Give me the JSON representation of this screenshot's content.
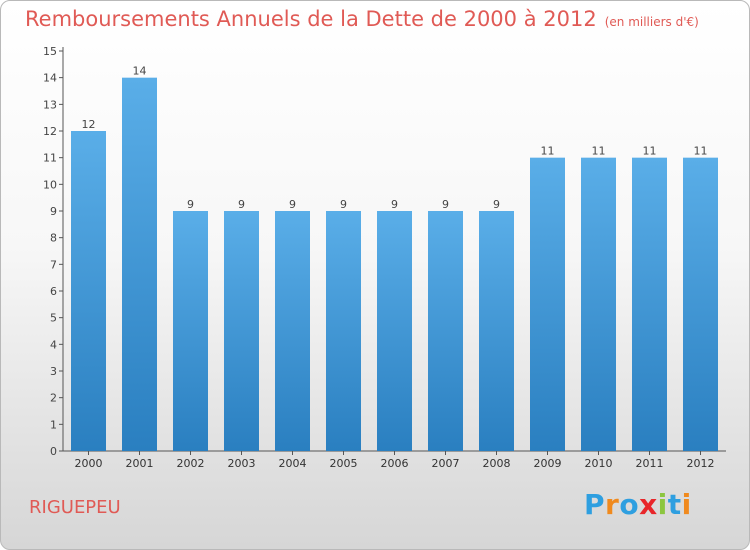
{
  "header": {
    "title": "Remboursements Annuels de la Dette de 2000 à 2012",
    "unit": "(en milliers d'€)"
  },
  "commune": "RIGUEPEU",
  "logo": {
    "text": "Proxiti",
    "letters": [
      {
        "char": "P",
        "color": "#2e9fe0"
      },
      {
        "char": "r",
        "color": "#f08a1e"
      },
      {
        "char": "o",
        "color": "#2e9fe0"
      },
      {
        "char": "x",
        "color": "#e8262a"
      },
      {
        "char": "i",
        "color": "#8cc63f"
      },
      {
        "char": "t",
        "color": "#2e9fe0"
      },
      {
        "char": "i",
        "color": "#f08a1e"
      }
    ]
  },
  "colors": {
    "title": "#e05a55",
    "bar_light": "#5aaee8",
    "bar_dark": "#2a7fc0"
  },
  "chart_data": {
    "type": "bar",
    "title": "Remboursements Annuels de la Dette de 2000 à 2012",
    "subtitle": "(en milliers d'€)",
    "xlabel": "",
    "ylabel": "",
    "categories": [
      "2000",
      "2001",
      "2002",
      "2003",
      "2004",
      "2005",
      "2006",
      "2007",
      "2008",
      "2009",
      "2010",
      "2011",
      "2012"
    ],
    "values": [
      12,
      14,
      9,
      9,
      9,
      9,
      9,
      9,
      9,
      11,
      11,
      11,
      11
    ],
    "data_labels": [
      "12",
      "14",
      "9",
      "9",
      "9",
      "9",
      "9",
      "9",
      "9",
      "11",
      "11",
      "11",
      "11"
    ],
    "ylim": [
      0,
      15
    ],
    "yticks": [
      "0",
      "1",
      "2",
      "3",
      "4",
      "5",
      "6",
      "7",
      "8",
      "9",
      "10",
      "11",
      "12",
      "13",
      "14",
      "15"
    ],
    "grid": false,
    "legend": "none"
  }
}
